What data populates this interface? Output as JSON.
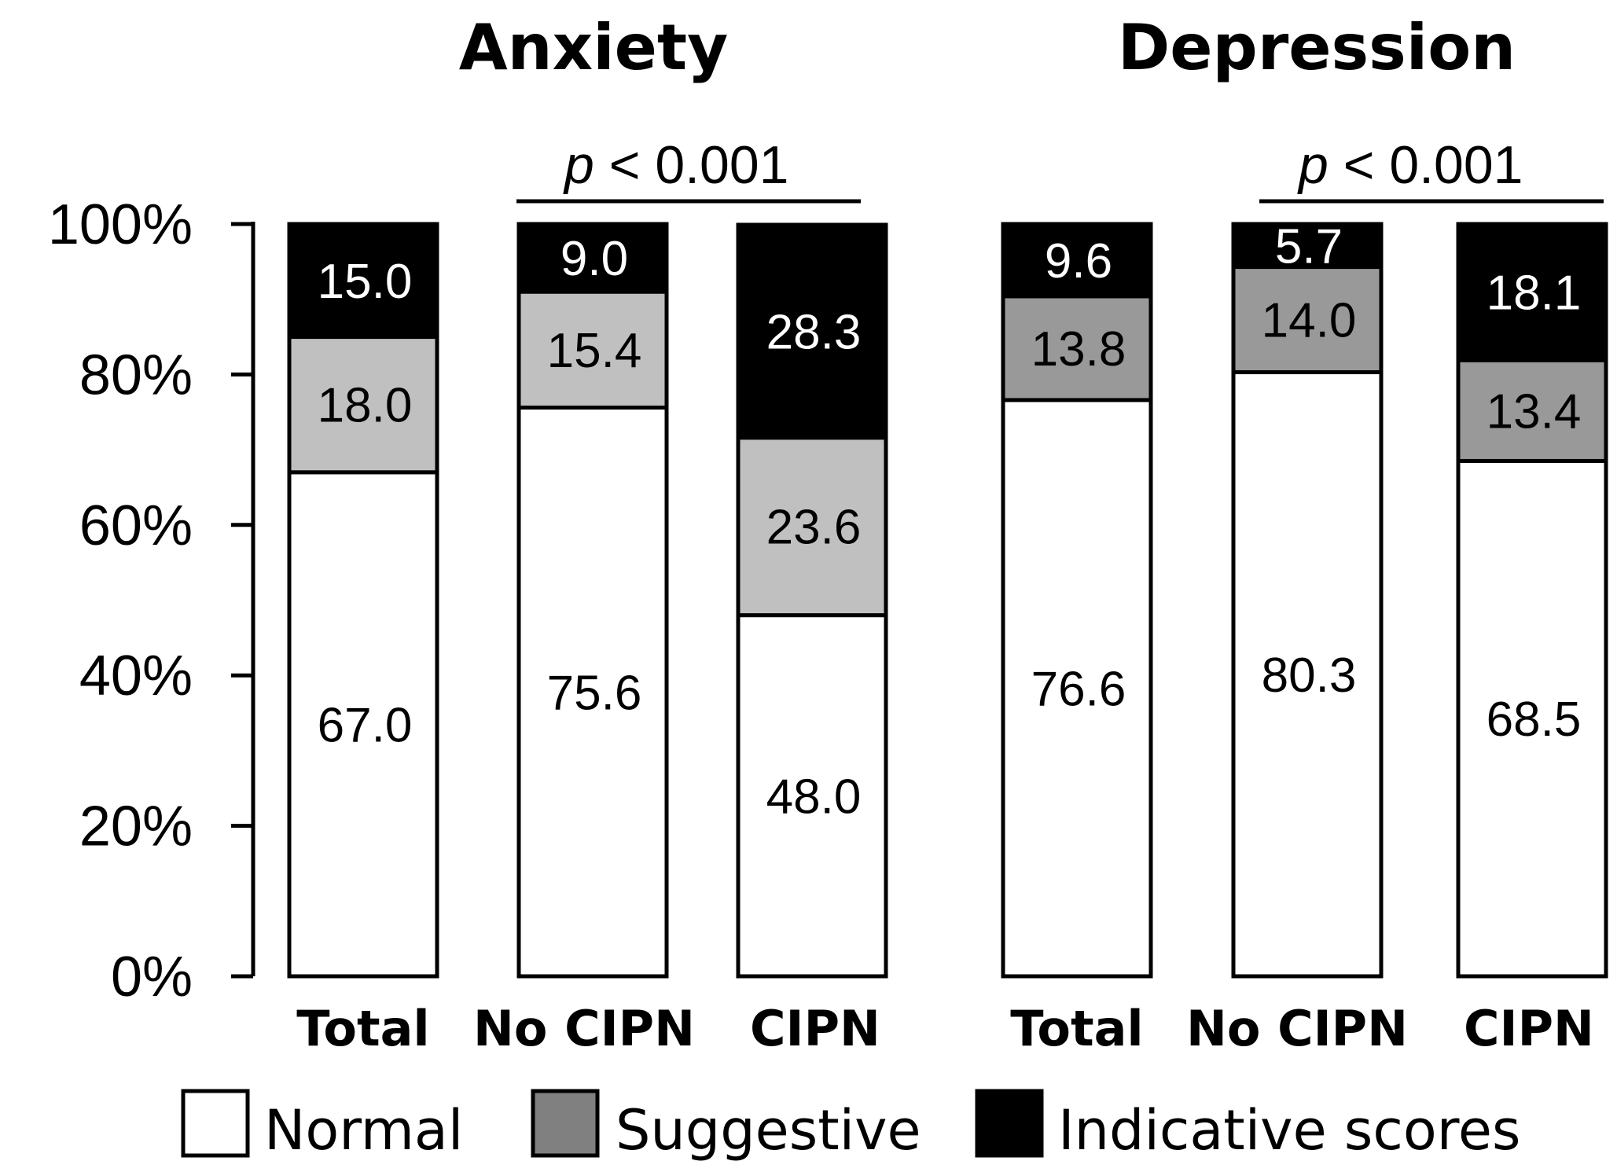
{
  "chart_data": [
    {
      "type": "bar",
      "stacked": true,
      "title": "Anxiety",
      "categories": [
        "Total",
        "No CIPN",
        "CIPN"
      ],
      "series": [
        {
          "name": "Normal",
          "values": [
            67.0,
            75.6,
            48.0
          ],
          "labels": [
            "67.0",
            "75.6",
            "48.0"
          ]
        },
        {
          "name": "Suggestive",
          "values": [
            18.0,
            15.4,
            23.6
          ],
          "labels": [
            "18.0",
            "15.4",
            "23.6"
          ]
        },
        {
          "name": "Indicative scores",
          "values": [
            15.0,
            9.0,
            28.3
          ],
          "labels": [
            "15.0",
            "9.0",
            "28.3"
          ]
        }
      ],
      "significance": {
        "p_symbol": "p",
        "p_rest": " < 0.001",
        "categories": [
          "No CIPN",
          "CIPN"
        ]
      },
      "ylim": [
        0,
        100
      ]
    },
    {
      "type": "bar",
      "stacked": true,
      "title": "Depression",
      "categories": [
        "Total",
        "No CIPN",
        "CIPN"
      ],
      "series": [
        {
          "name": "Normal",
          "values": [
            76.6,
            80.3,
            68.5
          ],
          "labels": [
            "76.6",
            "80.3",
            "68.5"
          ]
        },
        {
          "name": "Suggestive",
          "values": [
            13.8,
            14.0,
            13.4
          ],
          "labels": [
            "13.8",
            "14.0",
            "13.4"
          ]
        },
        {
          "name": "Indicative scores",
          "values": [
            9.6,
            5.7,
            18.1
          ],
          "labels": [
            "9.6",
            "5.7",
            "18.1"
          ]
        }
      ],
      "significance": {
        "p_symbol": "p",
        "p_rest": " < 0.001",
        "categories": [
          "No CIPN",
          "CIPN"
        ]
      },
      "ylim": [
        0,
        100
      ]
    }
  ],
  "y_axis": {
    "ticks": [
      0,
      20,
      40,
      60,
      80,
      100
    ],
    "tick_labels": [
      "0%",
      "20%",
      "40%",
      "60%",
      "80%",
      "100%"
    ]
  },
  "legend": {
    "position": "bottom",
    "items": [
      {
        "label": "Normal",
        "color": "#ffffff"
      },
      {
        "label": "Suggestive",
        "color": "#808080"
      },
      {
        "label": "Indicative scores",
        "color": "#000000"
      }
    ]
  },
  "colors": {
    "anxiety_suggestive": "#c0c0c0",
    "depression_suggestive": "#999999",
    "indicative": "#000000",
    "normal": "#ffffff",
    "outline": "#000000"
  }
}
